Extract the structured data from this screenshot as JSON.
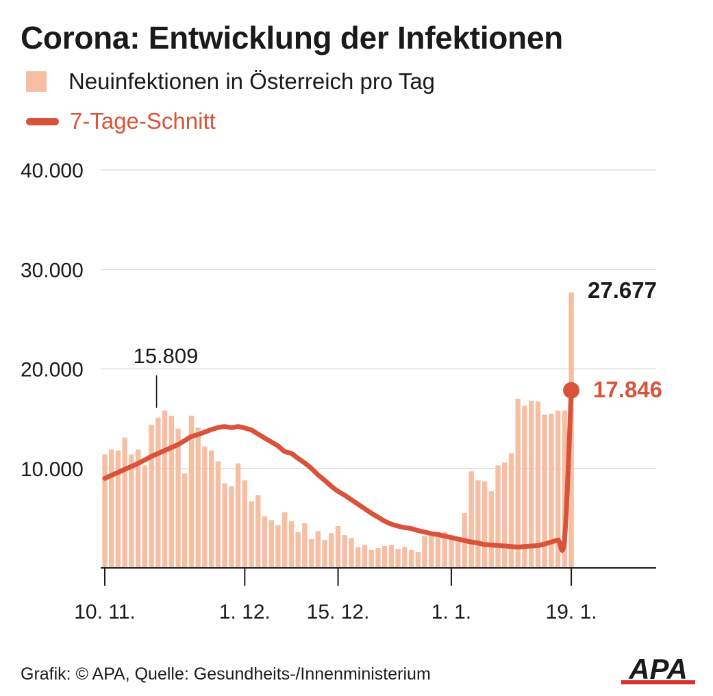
{
  "title": "Corona: Entwicklung der Infektionen",
  "legend": {
    "bars_label": "Neuinfektionen in Österreich pro Tag",
    "line_label": "7-Tage-Schnitt"
  },
  "footer": "Grafik: © APA, Quelle: Gesundheits-/Innenministerium",
  "logo_text": "APA",
  "colors": {
    "bar": "#f6bfa3",
    "line": "#d9533b",
    "text": "#1a1a1a",
    "grid": "#d9d9d9"
  },
  "chart_data": {
    "type": "bar",
    "x": [
      "2021-11-10",
      "2021-11-11",
      "2021-11-12",
      "2021-11-13",
      "2021-11-14",
      "2021-11-15",
      "2021-11-16",
      "2021-11-17",
      "2021-11-18",
      "2021-11-19",
      "2021-11-20",
      "2021-11-21",
      "2021-11-22",
      "2021-11-23",
      "2021-11-24",
      "2021-11-25",
      "2021-11-26",
      "2021-11-27",
      "2021-11-28",
      "2021-11-29",
      "2021-11-30",
      "2021-12-01",
      "2021-12-02",
      "2021-12-03",
      "2021-12-04",
      "2021-12-05",
      "2021-12-06",
      "2021-12-07",
      "2021-12-08",
      "2021-12-09",
      "2021-12-10",
      "2021-12-11",
      "2021-12-12",
      "2021-12-13",
      "2021-12-14",
      "2021-12-15",
      "2021-12-16",
      "2021-12-17",
      "2021-12-18",
      "2021-12-19",
      "2021-12-20",
      "2021-12-21",
      "2021-12-22",
      "2021-12-23",
      "2021-12-24",
      "2021-12-25",
      "2021-12-26",
      "2021-12-27",
      "2021-12-28",
      "2021-12-29",
      "2021-12-30",
      "2021-12-31",
      "2022-01-01",
      "2022-01-02",
      "2022-01-03",
      "2022-01-04",
      "2022-01-05",
      "2022-01-06",
      "2022-01-07",
      "2022-01-08",
      "2022-01-09",
      "2022-01-10",
      "2022-01-11",
      "2022-01-12",
      "2022-01-13",
      "2022-01-14",
      "2022-01-15",
      "2022-01-16",
      "2022-01-17",
      "2022-01-18",
      "2022-01-19"
    ],
    "series": [
      {
        "name": "Neuinfektionen in Österreich pro Tag",
        "type": "bar",
        "values": [
          11400,
          11900,
          11800,
          13100,
          11400,
          11900,
          10300,
          14400,
          15100,
          15809,
          15300,
          14000,
          9500,
          15300,
          14100,
          12200,
          11800,
          10700,
          8500,
          8200,
          10500,
          8800,
          6700,
          7300,
          5200,
          4800,
          4300,
          5600,
          4700,
          3600,
          4500,
          2900,
          3700,
          2800,
          3500,
          4200,
          3300,
          3000,
          2100,
          2300,
          1800,
          2000,
          2200,
          2300,
          1900,
          2100,
          1800,
          1600,
          3200,
          3200,
          3600,
          3600,
          3100,
          3100,
          5500,
          9700,
          8800,
          8700,
          7700,
          10300,
          10600,
          11500,
          17000,
          16300,
          16800,
          16700,
          15400,
          15500,
          15800,
          15800,
          27677
        ]
      },
      {
        "name": "7-Tage-Schnitt",
        "type": "line",
        "values": [
          9000,
          9300,
          9600,
          9900,
          10200,
          10500,
          10850,
          11200,
          11500,
          11800,
          12100,
          12400,
          12800,
          13200,
          13400,
          13650,
          13900,
          14100,
          14200,
          14100,
          14200,
          14050,
          13850,
          13450,
          13050,
          12650,
          12250,
          11700,
          11500,
          11000,
          10550,
          10000,
          9350,
          8800,
          8200,
          7700,
          7300,
          6850,
          6400,
          5950,
          5500,
          5100,
          4700,
          4400,
          4200,
          4050,
          3950,
          3750,
          3600,
          3450,
          3350,
          3200,
          3050,
          2900,
          2750,
          2600,
          2500,
          2350,
          2300,
          2250,
          2200,
          2150,
          2100,
          2150,
          2200,
          2250,
          2400,
          2600,
          2800,
          3000,
          17846
        ]
      }
    ],
    "annotations": [
      {
        "x": "2021-11-19",
        "label": "15.809"
      },
      {
        "x": "2022-01-19",
        "label": "27.677"
      },
      {
        "x": "2022-01-19",
        "label": "17.846"
      }
    ],
    "x_ticks": [
      {
        "x": "2021-11-10",
        "label": "10. 11."
      },
      {
        "x": "2021-12-01",
        "label": "1. 12."
      },
      {
        "x": "2021-12-15",
        "label": "15. 12."
      },
      {
        "x": "2022-01-01",
        "label": "1. 1."
      },
      {
        "x": "2022-01-19",
        "label": "19. 1."
      }
    ],
    "y_ticks": [
      {
        "value": 10000,
        "label": "10.000"
      },
      {
        "value": 20000,
        "label": "20.000"
      },
      {
        "value": 30000,
        "label": "30.000"
      },
      {
        "value": 40000,
        "label": "40.000"
      }
    ],
    "ylim": [
      0,
      40000
    ],
    "grid": true
  }
}
